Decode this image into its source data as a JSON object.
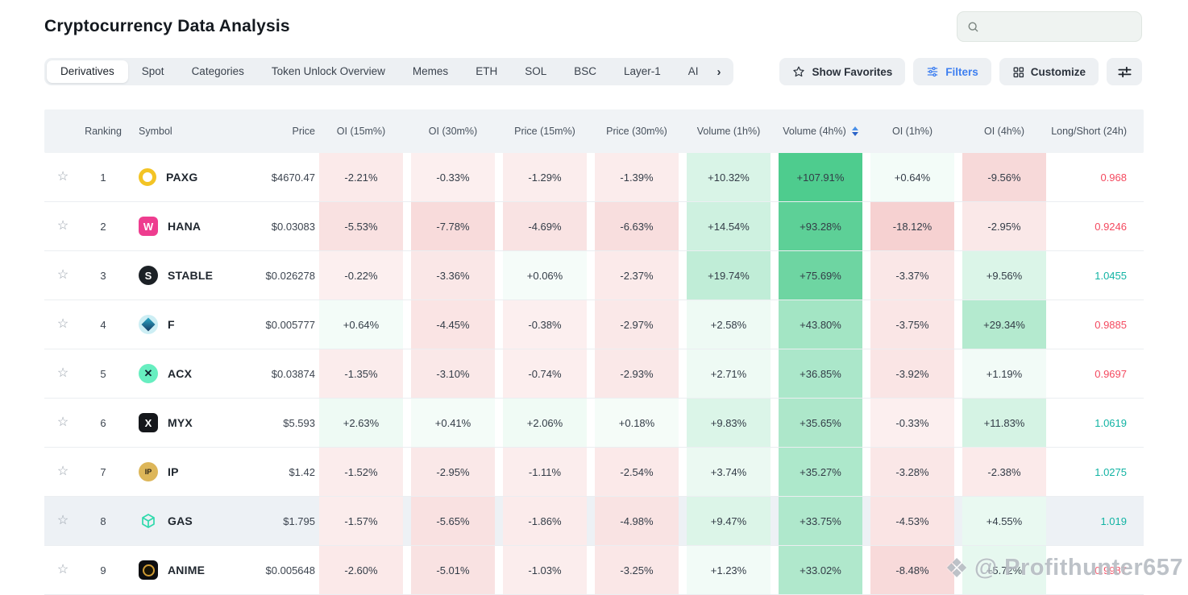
{
  "page": {
    "title": "Cryptocurrency Data Analysis",
    "watermark": "@ Profithunter657"
  },
  "search": {
    "value": "",
    "placeholder": ""
  },
  "tabs": [
    "Derivatives",
    "Spot",
    "Categories",
    "Token Unlock Overview",
    "Memes",
    "ETH",
    "SOL",
    "BSC",
    "Layer-1",
    "AI"
  ],
  "active_tab": "Derivatives",
  "tabs_overflow_chevron": "›",
  "toolbar": {
    "show_favorites": "Show Favorites",
    "filters": "Filters",
    "customize": "Customize"
  },
  "colors": {
    "accent_blue": "#3e7ff0",
    "positive_base": "#38c680",
    "negative_base": "#e16969",
    "ls_up": "#11b3a3",
    "ls_down": "#f4495f",
    "row_highlight": "#edf1f5",
    "header_bg": "#f0f3f6",
    "chip_bg": "#edf0f3"
  },
  "table": {
    "columns": [
      "Ranking",
      "Symbol",
      "Price",
      "OI (15m%)",
      "OI (30m%)",
      "Price (15m%)",
      "Price (30m%)",
      "Volume (1h%)",
      "Volume (4h%)",
      "OI (1h%)",
      "OI (4h%)",
      "Long/Short (24h)"
    ],
    "sort_column": "Volume (4h%)",
    "sort_direction": "desc",
    "rows": [
      {
        "rank": "1",
        "symbol": "PAXG",
        "price": "$4670.47",
        "icon": {
          "name": "paxg-logo",
          "shape": "ring",
          "color": "#f3c425"
        },
        "metrics": [
          "-2.21%",
          "-0.33%",
          "-1.29%",
          "-1.39%",
          "+10.32%",
          "+107.91%",
          "+0.64%",
          "-9.56%"
        ],
        "long_short": "0.968",
        "highlighted": false
      },
      {
        "rank": "2",
        "symbol": "HANA",
        "price": "$0.03083",
        "icon": {
          "name": "hana-logo",
          "shape": "square",
          "bg": "#ee3d8f",
          "glyph": "W",
          "fg": "#ffffff"
        },
        "metrics": [
          "-5.53%",
          "-7.78%",
          "-4.69%",
          "-6.63%",
          "+14.54%",
          "+93.28%",
          "-18.12%",
          "-2.95%"
        ],
        "long_short": "0.9246",
        "highlighted": false
      },
      {
        "rank": "3",
        "symbol": "STABLE",
        "price": "$0.026278",
        "icon": {
          "name": "stable-logo",
          "shape": "circle",
          "bg": "#1c2126",
          "glyph": "S",
          "fg": "#ffffff"
        },
        "metrics": [
          "-0.22%",
          "-3.36%",
          "+0.06%",
          "-2.37%",
          "+19.74%",
          "+75.69%",
          "-3.37%",
          "+9.56%"
        ],
        "long_short": "1.0455",
        "highlighted": false
      },
      {
        "rank": "4",
        "symbol": "F",
        "price": "$0.005777",
        "icon": {
          "name": "f-logo",
          "shape": "cube",
          "bg": "#cdeef4",
          "color1": "#2ba8c6",
          "color2": "#173a63"
        },
        "metrics": [
          "+0.64%",
          "-4.45%",
          "-0.38%",
          "-2.97%",
          "+2.58%",
          "+43.80%",
          "-3.75%",
          "+29.34%"
        ],
        "long_short": "0.9885",
        "highlighted": false
      },
      {
        "rank": "5",
        "symbol": "ACX",
        "price": "$0.03874",
        "icon": {
          "name": "acx-logo",
          "shape": "circle",
          "bg": "#67eec0",
          "glyph": "✕",
          "fg": "#10212e"
        },
        "metrics": [
          "-1.35%",
          "-3.10%",
          "-0.74%",
          "-2.93%",
          "+2.71%",
          "+36.85%",
          "-3.92%",
          "+1.19%"
        ],
        "long_short": "0.9697",
        "highlighted": false
      },
      {
        "rank": "6",
        "symbol": "MYX",
        "price": "$5.593",
        "icon": {
          "name": "myx-logo",
          "shape": "square",
          "bg": "#15171b",
          "glyph": "X",
          "fg": "#ffffff"
        },
        "metrics": [
          "+2.63%",
          "+0.41%",
          "+2.06%",
          "+0.18%",
          "+9.83%",
          "+35.65%",
          "-0.33%",
          "+11.83%"
        ],
        "long_short": "1.0619",
        "highlighted": false
      },
      {
        "rank": "7",
        "symbol": "IP",
        "price": "$1.42",
        "icon": {
          "name": "ip-logo",
          "shape": "circle",
          "bg": "#ddb659",
          "glyph": "IP",
          "fg": "#2c2416"
        },
        "metrics": [
          "-1.52%",
          "-2.95%",
          "-1.11%",
          "-2.54%",
          "+3.74%",
          "+35.27%",
          "-3.28%",
          "-2.38%"
        ],
        "long_short": "1.0275",
        "highlighted": false
      },
      {
        "rank": "8",
        "symbol": "GAS",
        "price": "$1.795",
        "icon": {
          "name": "gas-logo",
          "shape": "cube-outline",
          "color": "#2fd9ac"
        },
        "metrics": [
          "-1.57%",
          "-5.65%",
          "-1.86%",
          "-4.98%",
          "+9.47%",
          "+33.75%",
          "-4.53%",
          "+4.55%"
        ],
        "long_short": "1.019",
        "highlighted": true
      },
      {
        "rank": "9",
        "symbol": "ANIME",
        "price": "$0.005648",
        "icon": {
          "name": "anime-logo",
          "shape": "coin",
          "bg": "#0d0e11",
          "ring": "#cf9c35"
        },
        "metrics": [
          "-2.60%",
          "-5.01%",
          "-1.03%",
          "-3.25%",
          "+1.23%",
          "+33.02%",
          "-8.48%",
          "+5.72%"
        ],
        "long_short": "0.9987",
        "highlighted": false
      }
    ]
  }
}
